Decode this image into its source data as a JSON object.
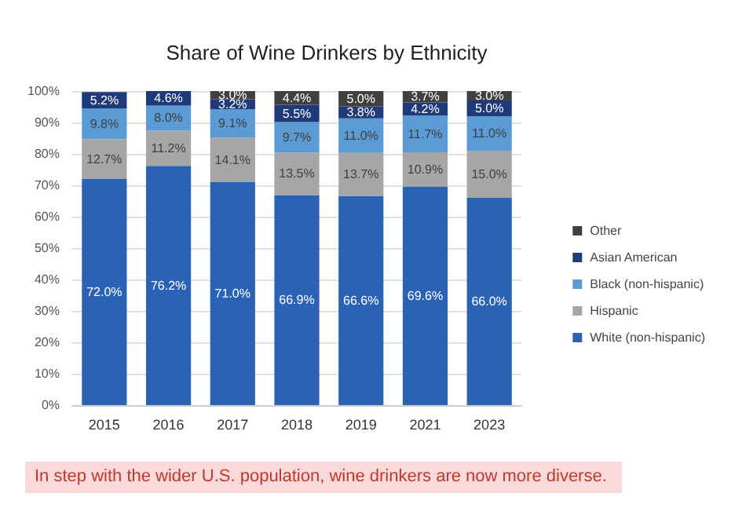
{
  "chart_data": {
    "type": "bar",
    "stacked": true,
    "title": "Share of Wine Drinkers by Ethnicity",
    "categories": [
      "2015",
      "2016",
      "2017",
      "2018",
      "2019",
      "2021",
      "2023"
    ],
    "series": [
      {
        "name": "White (non-hispanic)",
        "color": "#2a62b5",
        "values": [
          72.0,
          76.2,
          71.0,
          66.9,
          66.6,
          69.6,
          66.0
        ],
        "value_labels": [
          "72.0%",
          "76.2%",
          "71.0%",
          "66.9%",
          "66.6%",
          "69.6%",
          "66.0%"
        ]
      },
      {
        "name": "Hispanic",
        "color": "#a6a6a6",
        "values": [
          12.7,
          11.2,
          14.1,
          13.5,
          13.7,
          10.9,
          15.0
        ],
        "value_labels": [
          "12.7%",
          "11.2%",
          "14.1%",
          "13.5%",
          "13.7%",
          "10.9%",
          "15.0%"
        ]
      },
      {
        "name": "Black (non-hispanic)",
        "color": "#5b9bd5",
        "values": [
          9.8,
          8.0,
          9.1,
          9.7,
          11.0,
          11.7,
          11.0
        ],
        "value_labels": [
          "9.8%",
          "8.0%",
          "9.1%",
          "9.7%",
          "11.0%",
          "11.7%",
          "11.0%"
        ]
      },
      {
        "name": "Asian American",
        "color": "#1f3a7a",
        "values": [
          5.2,
          4.6,
          3.2,
          5.5,
          3.8,
          4.2,
          5.0
        ],
        "value_labels": [
          "5.2%",
          "4.6%",
          "3.2%",
          "5.5%",
          "3.8%",
          "4.2%",
          "5.0%"
        ]
      },
      {
        "name": "Other",
        "color": "#404040",
        "values": [
          null,
          null,
          3.0,
          4.4,
          5.0,
          3.7,
          3.0
        ],
        "value_labels": [
          null,
          null,
          "3.0%",
          "4.4%",
          "5.0%",
          "3.7%",
          "3.0%"
        ]
      }
    ],
    "ylim": [
      0,
      100
    ],
    "yticks": [
      {
        "value": 0,
        "label": "0%"
      },
      {
        "value": 10,
        "label": "10%"
      },
      {
        "value": 20,
        "label": "20%"
      },
      {
        "value": 30,
        "label": "30%"
      },
      {
        "value": 40,
        "label": "40%"
      },
      {
        "value": 50,
        "label": "50%"
      },
      {
        "value": 60,
        "label": "60%"
      },
      {
        "value": 70,
        "label": "70%"
      },
      {
        "value": 80,
        "label": "80%"
      },
      {
        "value": 90,
        "label": "90%"
      },
      {
        "value": 100,
        "label": "100%"
      }
    ],
    "grid": "y",
    "legend": "right",
    "annotations": [
      "In step with the wider U.S. population, wine drinkers are now more diverse."
    ]
  }
}
